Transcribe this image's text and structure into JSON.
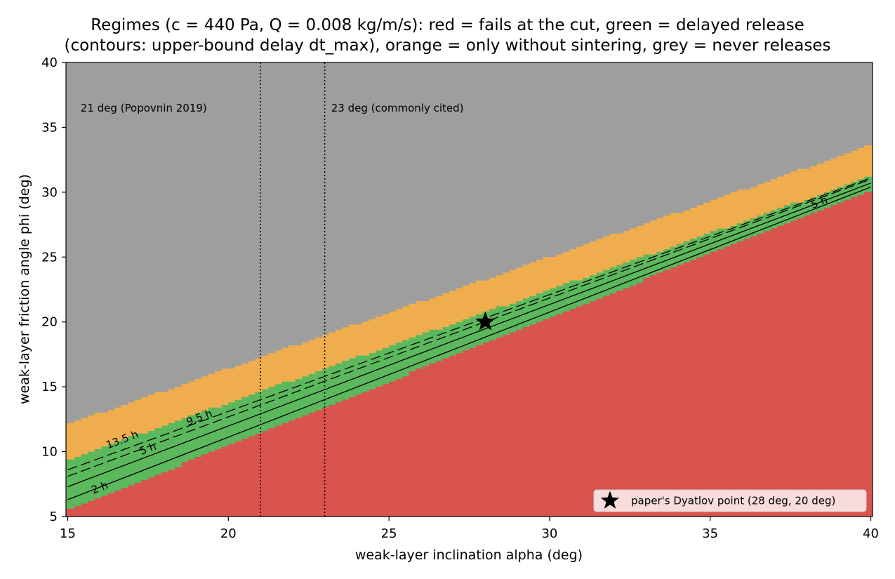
{
  "chart_data": {
    "type": "heatmap",
    "title": "Regimes (c = 440 Pa, Q = 0.008 kg/m/s): red = fails at the cut, green = delayed release",
    "subtitle": "(contours: upper-bound delay dt_max), orange = only without sintering, grey = never releases",
    "xlabel": "weak-layer inclination alpha (deg)",
    "ylabel": "weak-layer friction angle phi (deg)",
    "xlim": [
      15,
      40
    ],
    "ylim": [
      5,
      40
    ],
    "xticks": [
      15,
      20,
      25,
      30,
      35,
      40
    ],
    "yticks": [
      5,
      10,
      15,
      20,
      25,
      30,
      35,
      40
    ],
    "colors": {
      "red": "#d9534f",
      "green": "#5cb85c",
      "orange": "#f0ad4e",
      "grey": "#9e9e9e"
    },
    "regions": [
      {
        "name": "red",
        "upper_boundary": {
          "x": [
            15,
            40
          ],
          "y": [
            5.5,
            30.2
          ]
        }
      },
      {
        "name": "green",
        "upper_boundary": {
          "x": [
            15,
            40
          ],
          "y": [
            9.4,
            31.2
          ]
        }
      },
      {
        "name": "orange",
        "upper_boundary": {
          "x": [
            15,
            40
          ],
          "y": [
            12.1,
            33.6
          ]
        }
      },
      {
        "name": "grey",
        "upper_boundary": {
          "x": [
            15,
            40
          ],
          "y": [
            40,
            40
          ]
        }
      }
    ],
    "contours": [
      {
        "label": "2 h",
        "dashed": false,
        "x": [
          15,
          40
        ],
        "y": [
          6.3,
          30.4
        ]
      },
      {
        "label": "5 h",
        "dashed": false,
        "x": [
          15,
          40
        ],
        "y": [
          7.3,
          30.7
        ]
      },
      {
        "label": "9.5 h",
        "dashed": true,
        "x": [
          15,
          40
        ],
        "y": [
          8.1,
          31.0
        ]
      },
      {
        "label": "13.5 h",
        "dashed": true,
        "x": [
          15,
          40
        ],
        "y": [
          8.6,
          31.1
        ]
      }
    ],
    "contour_labels": [
      {
        "text": "2 h",
        "x": 16.0,
        "y": 7.2
      },
      {
        "text": "5 h",
        "x": 17.5,
        "y": 10.2
      },
      {
        "text": "13.5 h",
        "x": 16.7,
        "y": 10.9
      },
      {
        "text": "9.5 h",
        "x": 19.1,
        "y": 12.6
      },
      {
        "text": "5 h",
        "x": 38.4,
        "y": 29.2
      }
    ],
    "reference_lines": [
      {
        "x": 21,
        "label": "21 deg (Popovnin 2019)",
        "label_y": 36.2,
        "label_x": 15.4
      },
      {
        "x": 23,
        "label": "23 deg (commonly cited)",
        "label_y": 36.2,
        "label_x": 23.2
      }
    ],
    "point": {
      "x": 28,
      "y": 20,
      "marker": "star",
      "label": "paper's Dyatlov point (28 deg, 20 deg)"
    },
    "legend_placement": "lower-right",
    "grid": false
  }
}
